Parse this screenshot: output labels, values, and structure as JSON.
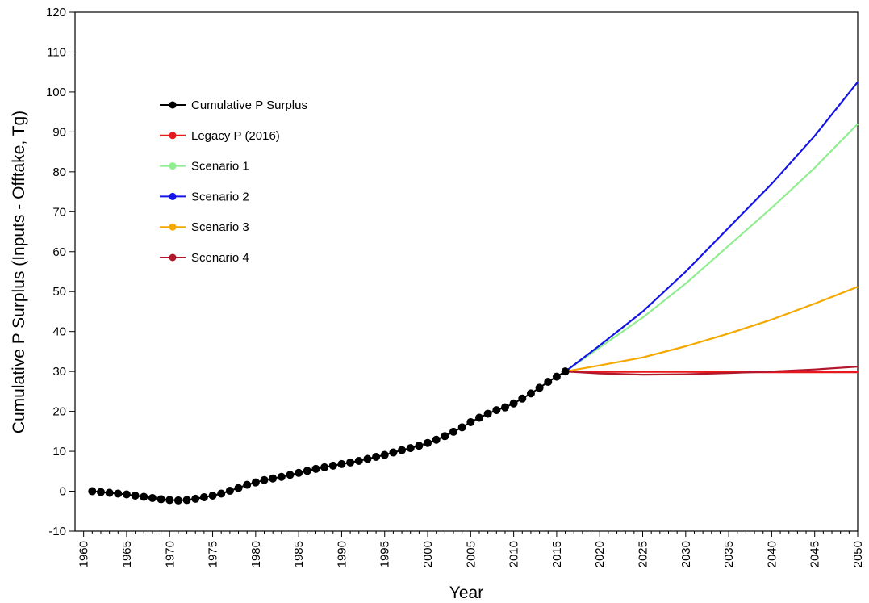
{
  "chart_data": {
    "type": "line",
    "title": "",
    "xlabel": "Year",
    "ylabel": "Cumulative P Surplus (Inputs - Offtake, Tg)",
    "xlim": [
      1959,
      2050
    ],
    "ylim": [
      -10,
      120
    ],
    "xticks": [
      1960,
      1965,
      1970,
      1975,
      1980,
      1985,
      1990,
      1995,
      2000,
      2005,
      2010,
      2015,
      2020,
      2025,
      2030,
      2035,
      2040,
      2045,
      2050
    ],
    "yticks": [
      -10,
      0,
      10,
      20,
      30,
      40,
      50,
      60,
      70,
      80,
      90,
      100,
      110,
      120
    ],
    "grid": false,
    "legend_position": "top-left",
    "legend": [
      {
        "label": "Cumulative P Surplus",
        "color": "#000000"
      },
      {
        "label": "Legacy P (2016)",
        "color": "#e8191c"
      },
      {
        "label": "Scenario 1",
        "color": "#90ee90"
      },
      {
        "label": "Scenario 2",
        "color": "#1414e6"
      },
      {
        "label": "Scenario 3",
        "color": "#f5a800"
      },
      {
        "label": "Scenario 4",
        "color": "#b2182b"
      }
    ],
    "series": [
      {
        "name": "Cumulative P Surplus",
        "color": "#000000",
        "markers": true,
        "x": [
          1961,
          1962,
          1963,
          1964,
          1965,
          1966,
          1967,
          1968,
          1969,
          1970,
          1971,
          1972,
          1973,
          1974,
          1975,
          1976,
          1977,
          1978,
          1979,
          1980,
          1981,
          1982,
          1983,
          1984,
          1985,
          1986,
          1987,
          1988,
          1989,
          1990,
          1991,
          1992,
          1993,
          1994,
          1995,
          1996,
          1997,
          1998,
          1999,
          2000,
          2001,
          2002,
          2003,
          2004,
          2005,
          2006,
          2007,
          2008,
          2009,
          2010,
          2011,
          2012,
          2013,
          2014,
          2015,
          2016
        ],
        "y": [
          0,
          -0.2,
          -0.4,
          -0.6,
          -0.8,
          -1.1,
          -1.4,
          -1.7,
          -2.0,
          -2.2,
          -2.3,
          -2.2,
          -1.9,
          -1.5,
          -1.1,
          -0.6,
          0.1,
          0.8,
          1.6,
          2.2,
          2.8,
          3.2,
          3.6,
          4.1,
          4.6,
          5.1,
          5.6,
          6.0,
          6.4,
          6.8,
          7.2,
          7.6,
          8.1,
          8.6,
          9.1,
          9.7,
          10.3,
          10.8,
          11.4,
          12.1,
          12.9,
          13.8,
          14.9,
          16.0,
          17.3,
          18.4,
          19.4,
          20.3,
          21.0,
          22.0,
          23.2,
          24.5,
          25.9,
          27.4,
          28.7,
          30.0
        ]
      },
      {
        "name": "Legacy P (2016)",
        "color": "#e8191c",
        "markers": false,
        "x": [
          2016,
          2020,
          2025,
          2030,
          2035,
          2040,
          2045,
          2050
        ],
        "y": [
          30.0,
          29.9,
          29.9,
          29.9,
          29.8,
          29.8,
          29.8,
          29.8
        ]
      },
      {
        "name": "Scenario 1",
        "color": "#90ee90",
        "markers": false,
        "x": [
          2016,
          2020,
          2025,
          2030,
          2035,
          2040,
          2045,
          2050
        ],
        "y": [
          30.0,
          36.0,
          43.5,
          52.0,
          61.5,
          71.0,
          81.0,
          92.0
        ]
      },
      {
        "name": "Scenario 2",
        "color": "#1414e6",
        "markers": false,
        "x": [
          2016,
          2020,
          2025,
          2030,
          2035,
          2040,
          2045,
          2050
        ],
        "y": [
          30.0,
          36.5,
          45.0,
          55.0,
          66.0,
          77.0,
          89.0,
          102.5
        ]
      },
      {
        "name": "Scenario 3",
        "color": "#f5a800",
        "markers": false,
        "x": [
          2016,
          2020,
          2025,
          2030,
          2035,
          2040,
          2045,
          2050
        ],
        "y": [
          30.0,
          31.5,
          33.5,
          36.3,
          39.5,
          43.0,
          47.0,
          51.2
        ]
      },
      {
        "name": "Scenario 4",
        "color": "#b2182b",
        "markers": false,
        "x": [
          2016,
          2020,
          2025,
          2030,
          2035,
          2040,
          2045,
          2050
        ],
        "y": [
          30.0,
          29.5,
          29.2,
          29.3,
          29.6,
          30.0,
          30.5,
          31.2
        ]
      }
    ]
  }
}
